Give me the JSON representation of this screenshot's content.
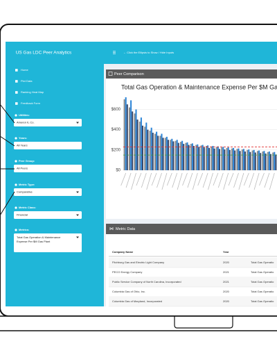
{
  "header": {
    "title": "US Gas LDC Peer Analytics",
    "hint": "← Click the Ellipsis to Show / Hide Inputs"
  },
  "nav": [
    "Home",
    "Plot Data",
    "Ranking Heat Map",
    "Feedback Form"
  ],
  "inputs": [
    {
      "label": "Utilities:",
      "value": "Ameren IL Co."
    },
    {
      "label": "Years:",
      "value": "All Years"
    },
    {
      "label": "Peer Group:",
      "value": "All Peers"
    },
    {
      "label": "Metric Type:",
      "value": "Comparative"
    },
    {
      "label": "Metric Class:",
      "value": "Financial"
    },
    {
      "label": "Metrics:",
      "lines": [
        "Total Gas Operation & Maintenance",
        "Expense Per $M Gas Plant"
      ]
    }
  ],
  "panels": {
    "chart": "Peer Comparison",
    "table": "Metric Data"
  },
  "chart_data": {
    "type": "bar",
    "title": "Total Gas Operation & Maintenance Expense Per $M Gas",
    "ylim": [
      0,
      720
    ],
    "yticks": [
      {
        "value": 0,
        "label": "$0"
      },
      {
        "value": 200,
        "label": "$200"
      },
      {
        "value": 400,
        "label": "$400"
      },
      {
        "value": 600,
        "label": "$600"
      }
    ],
    "grid": true,
    "series": [
      {
        "color": "#8c8c8c",
        "values": [
          700,
          620,
          560,
          480,
          430,
          390,
          360,
          340,
          320,
          300,
          290,
          280,
          270,
          260,
          250,
          245,
          240,
          235,
          230,
          225,
          220,
          215,
          210,
          205,
          200,
          195,
          190,
          185,
          180,
          175
        ]
      },
      {
        "color": "#2f86d8",
        "values": [
          720,
          690,
          600,
          520,
          470,
          420,
          380,
          360,
          330,
          310,
          300,
          290,
          275,
          265,
          255,
          250,
          245,
          240,
          235,
          230,
          225,
          220,
          215,
          210,
          205,
          200,
          195,
          190,
          185,
          180
        ]
      },
      {
        "color": "#3a4a6b",
        "values": [
          650,
          580,
          500,
          440,
          400,
          370,
          340,
          320,
          300,
          285,
          270,
          260,
          250,
          240,
          230,
          225,
          220,
          215,
          210,
          205,
          200,
          195,
          190,
          185,
          180,
          175,
          170,
          165,
          160,
          155
        ]
      }
    ],
    "reference_lines": [
      {
        "value": 230,
        "color": "#e03030"
      },
      {
        "value": 150,
        "color": "#30a040"
      }
    ]
  },
  "table": {
    "columns": [
      "Company Name",
      "Year"
    ],
    "rows": [
      [
        "Fitchburg Gas and Electric Light Company",
        "2020",
        "Total Gas Operatio"
      ],
      [
        "PECO Energy Company",
        "2021",
        "Total Gas Operatio"
      ],
      [
        "Public Service Company of North Carolina, Incorporated",
        "2021",
        "Total Gas Operatio"
      ],
      [
        "Columbia Gas of Ohio, Inc.",
        "2020",
        "Total Gas Operatio"
      ],
      [
        "Columbia Gas of Maryland, Incorporated",
        "2020",
        "Total Gas Operatio"
      ]
    ]
  }
}
